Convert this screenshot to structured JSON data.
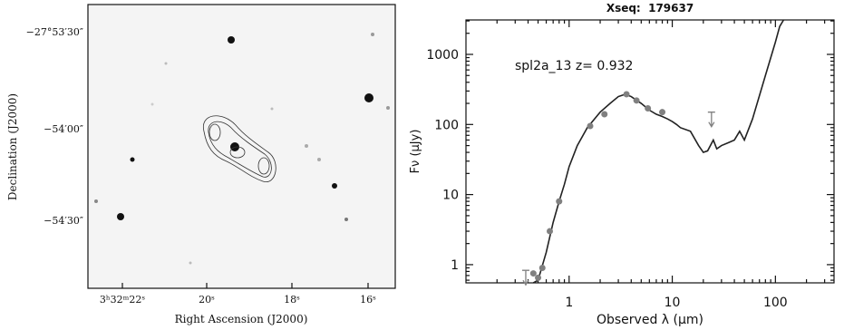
{
  "image_panel": {
    "xlabel": "Right Ascension (J2000)",
    "ylabel": "Declination (J2000)",
    "xticks": [
      "3ʰ32ᵐ22ˢ",
      "20ˢ",
      "18ˢ",
      "16ˢ"
    ],
    "yticks": [
      "−27°53′30″",
      "−54′00″",
      "−54′30″"
    ]
  },
  "chart_data": {
    "type": "line",
    "title": "Xseq:  179637",
    "annotation": "spl2a_13 z= 0.932",
    "xlabel": "Observed λ (μm)",
    "ylabel": "Fν (μJy)",
    "xlog": true,
    "ylog": true,
    "xlim": [
      0.1,
      370
    ],
    "ylim": [
      0.55,
      3100
    ],
    "xticks": [
      1,
      10,
      100
    ],
    "yticks": [
      1,
      10,
      100,
      1000
    ],
    "series": [
      {
        "style": "line",
        "color": "#222222",
        "x": [
          0.45,
          0.5,
          0.6,
          0.7,
          0.8,
          0.9,
          1,
          1.2,
          1.5,
          2,
          2.5,
          3,
          3.5,
          4,
          5,
          6,
          7,
          8,
          9,
          10,
          11,
          12,
          15,
          18,
          20,
          22,
          25,
          27,
          30,
          35,
          40,
          45,
          50,
          60,
          80,
          100,
          110,
          120
        ],
        "values": [
          0.55,
          0.6,
          1.5,
          4,
          8,
          14,
          25,
          50,
          90,
          150,
          200,
          250,
          270,
          250,
          200,
          160,
          140,
          130,
          120,
          110,
          100,
          90,
          80,
          50,
          40,
          42,
          60,
          45,
          50,
          55,
          60,
          80,
          60,
          120,
          500,
          1500,
          2500,
          3100
        ]
      },
      {
        "style": "points",
        "color": "#808080",
        "x": [
          0.45,
          0.5,
          0.55,
          0.65,
          0.8,
          1.6,
          2.2,
          3.6,
          4.5,
          5.8,
          8
        ],
        "values": [
          0.75,
          0.65,
          0.9,
          3,
          8,
          95,
          140,
          270,
          220,
          170,
          150
        ]
      },
      {
        "style": "upper-limit",
        "color": "#808080",
        "x": [
          0.38,
          24
        ],
        "values": [
          0.83,
          150
        ]
      }
    ]
  }
}
